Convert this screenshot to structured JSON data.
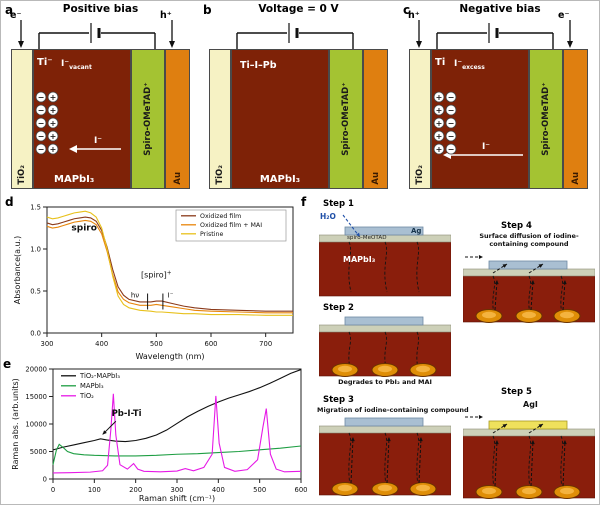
{
  "panels": {
    "a": {
      "label": "a",
      "title": "Positive bias",
      "carrier_left": "e⁻",
      "carrier_right": "h⁺",
      "tio2": "TiO₂",
      "ti": "Ti⁻",
      "iodide_state": {
        "base": "I⁻",
        "sub": "vacant"
      },
      "charges": {
        "rows": 5,
        "left": "−",
        "right": "+"
      },
      "ion_arrow": "I⁻",
      "mapbi3": "MAPbI₃",
      "spiro": "Spiro-OMeTAD⁺",
      "au": "Au"
    },
    "b": {
      "label": "b",
      "title": "Voltage = 0 V",
      "tio2": "TiO₂",
      "bond": "Ti–I–Pb",
      "mapbi3": "MAPbI₃",
      "spiro": "Spiro-OMeTAD⁺",
      "au": "Au"
    },
    "c": {
      "label": "c",
      "title": "Negative bias",
      "carrier_left": "h⁺",
      "carrier_right": "e⁻",
      "tio2": "TiO₂",
      "ti": "Ti",
      "iodide_state": {
        "base": "I⁻",
        "sub": "excess"
      },
      "charges": {
        "rows": 5,
        "left": "+",
        "right": "−"
      },
      "ion_arrow": "I⁻",
      "spiro": "Spiro-OMeTAD⁺",
      "au": "Au"
    }
  },
  "chart_data": [
    {
      "panel_label": "d",
      "type": "line",
      "xlabel": "Wavelength (nm)",
      "ylabel": "Absorbance(a.u.)",
      "xlim": [
        300,
        750
      ],
      "ylim": [
        0,
        1.5
      ],
      "xticks": [
        300,
        400,
        500,
        600,
        700
      ],
      "xtick_labels": [
        "300",
        "400",
        "500",
        "600",
        "700"
      ],
      "yticks": [
        0,
        0.5,
        1.0,
        1.5
      ],
      "ytick_labels": [
        "0.0",
        "0.5",
        "1.0",
        "1.5"
      ],
      "legend": {
        "position": "top-right",
        "box": true
      },
      "series": [
        {
          "name": "Oxidized film",
          "color": "#8B3A1A",
          "x": [
            300,
            310,
            320,
            330,
            340,
            350,
            360,
            370,
            380,
            390,
            400,
            410,
            420,
            430,
            440,
            450,
            470,
            490,
            500,
            510,
            530,
            550,
            570,
            600,
            650,
            700,
            750
          ],
          "y": [
            1.31,
            1.29,
            1.3,
            1.32,
            1.34,
            1.36,
            1.37,
            1.38,
            1.37,
            1.33,
            1.22,
            1.02,
            0.76,
            0.55,
            0.45,
            0.4,
            0.37,
            0.37,
            0.38,
            0.38,
            0.35,
            0.32,
            0.3,
            0.28,
            0.27,
            0.26,
            0.26
          ]
        },
        {
          "name": "Oxidized film + MAI",
          "color": "#E8860C",
          "x": [
            300,
            310,
            320,
            330,
            340,
            350,
            360,
            370,
            380,
            390,
            400,
            410,
            420,
            430,
            440,
            450,
            470,
            490,
            500,
            510,
            530,
            550,
            570,
            600,
            650,
            700,
            750
          ],
          "y": [
            1.27,
            1.25,
            1.26,
            1.28,
            1.3,
            1.32,
            1.33,
            1.34,
            1.33,
            1.29,
            1.18,
            0.97,
            0.7,
            0.49,
            0.4,
            0.36,
            0.33,
            0.33,
            0.34,
            0.33,
            0.31,
            0.29,
            0.27,
            0.26,
            0.25,
            0.24,
            0.24
          ]
        },
        {
          "name": "Pristine",
          "color": "#E8C11C",
          "x": [
            300,
            310,
            320,
            330,
            340,
            350,
            360,
            370,
            380,
            390,
            400,
            410,
            420,
            430,
            440,
            450,
            470,
            490,
            500,
            510,
            530,
            550,
            570,
            600,
            650,
            700,
            750
          ],
          "y": [
            1.38,
            1.36,
            1.37,
            1.39,
            1.41,
            1.43,
            1.44,
            1.45,
            1.43,
            1.38,
            1.25,
            1.0,
            0.68,
            0.44,
            0.34,
            0.3,
            0.27,
            0.26,
            0.25,
            0.25,
            0.24,
            0.23,
            0.23,
            0.22,
            0.22,
            0.21,
            0.21
          ]
        }
      ],
      "annotations": [
        {
          "type": "text",
          "x": 368,
          "y": 1.22,
          "text": "spiro",
          "bold": true,
          "size": 9
        },
        {
          "type": "text_sup",
          "x": 500,
          "y": 0.66,
          "base": "[spiro]",
          "sup": "+",
          "size": 8
        },
        {
          "type": "text",
          "x": 461,
          "y": 0.42,
          "text": "hν",
          "size": 7
        },
        {
          "type": "text",
          "x": 526,
          "y": 0.42,
          "text": "I⁻",
          "size": 7
        },
        {
          "type": "vline",
          "x": 484,
          "y1": 0.28,
          "y2": 0.47
        },
        {
          "type": "vline",
          "x": 512,
          "y1": 0.28,
          "y2": 0.47
        }
      ]
    },
    {
      "panel_label": "e",
      "type": "line",
      "xlabel": "Raman shift (cm⁻¹)",
      "ylabel": "Raman abs. (arb.units)",
      "xlim": [
        0,
        600
      ],
      "ylim": [
        0,
        20000
      ],
      "xticks": [
        0,
        100,
        200,
        300,
        400,
        500,
        600
      ],
      "xtick_labels": [
        "0",
        "100",
        "200",
        "300",
        "400",
        "500",
        "600"
      ],
      "yticks": [
        0,
        5000,
        10000,
        15000,
        20000
      ],
      "ytick_labels": [
        "0",
        "5000",
        "10000",
        "15000",
        "20000"
      ],
      "legend": {
        "position": "top-left",
        "box": false
      },
      "series": [
        {
          "name": "TiO₂-MAPbI₃",
          "color": "#111111",
          "x": [
            0,
            25,
            50,
            75,
            100,
            115,
            130,
            150,
            175,
            200,
            225,
            250,
            275,
            300,
            325,
            350,
            375,
            400,
            425,
            450,
            475,
            500,
            525,
            550,
            575,
            600
          ],
          "y": [
            5300,
            5800,
            6200,
            6600,
            7000,
            7300,
            7100,
            6900,
            6800,
            7000,
            7400,
            8000,
            8900,
            10100,
            11300,
            12300,
            13200,
            14000,
            14700,
            15300,
            15900,
            16600,
            17400,
            18300,
            19200,
            19900
          ]
        },
        {
          "name": "MAPbI₃",
          "color": "#1E9E43",
          "x": [
            0,
            8,
            15,
            25,
            35,
            50,
            75,
            100,
            150,
            200,
            250,
            300,
            350,
            400,
            450,
            500,
            550,
            600
          ],
          "y": [
            2600,
            5200,
            6300,
            5700,
            5000,
            4600,
            4400,
            4300,
            4200,
            4200,
            4300,
            4500,
            4600,
            4800,
            5000,
            5300,
            5600,
            6000
          ]
        },
        {
          "name": "TiO₂",
          "color": "#E619E6",
          "x": [
            0,
            40,
            90,
            120,
            132,
            140,
            146,
            152,
            162,
            180,
            195,
            205,
            220,
            260,
            300,
            320,
            340,
            365,
            385,
            394,
            402,
            415,
            440,
            470,
            495,
            508,
            516,
            526,
            540,
            560,
            600
          ],
          "y": [
            1100,
            1150,
            1250,
            1500,
            2500,
            9000,
            15500,
            8000,
            2600,
            1800,
            2800,
            1800,
            1400,
            1300,
            1450,
            1900,
            1500,
            2100,
            4500,
            15100,
            6500,
            2100,
            1400,
            1700,
            3500,
            9500,
            12800,
            4500,
            1800,
            1300,
            1400
          ]
        }
      ],
      "annotations": [
        {
          "type": "text",
          "x": 178,
          "y": 11500,
          "text": "Pb-I-Ti",
          "bold": true,
          "size": 8.5
        },
        {
          "type": "arrow",
          "x1": 152,
          "y1": 10500,
          "x2": 120,
          "y2": 8100
        }
      ]
    }
  ],
  "panel_f": {
    "label": "f",
    "steps": {
      "s1": {
        "title": "Step 1",
        "h2o": "H₂O",
        "ag": "Ag",
        "spiro": "spiro-MeOTAD",
        "mapbi3": "MAPbI₃"
      },
      "s2": {
        "title": "Step 2",
        "caption": "Degrades to PbI₂ and MAI"
      },
      "s3": {
        "title": "Step 3",
        "caption": "Migration of iodine-containing compound"
      },
      "s4": {
        "title": "Step 4",
        "caption": "Surface diffusion of iodine-containing compound"
      },
      "s5": {
        "title": "Step 5",
        "agi": "AgI"
      }
    }
  }
}
